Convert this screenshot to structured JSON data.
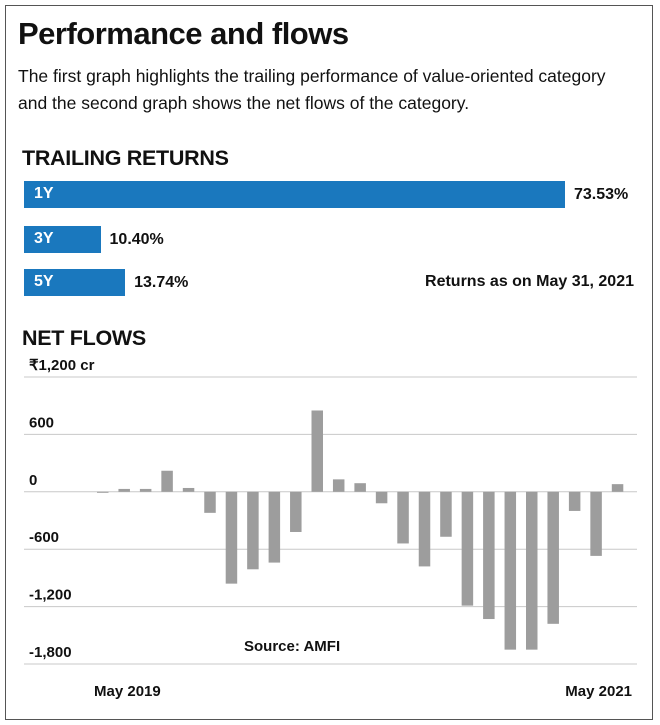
{
  "title": "Performance and flows",
  "subtitle": "The first graph highlights the trailing performance of value-oriented category and the second graph shows the net flows of the category.",
  "trailing_returns": {
    "heading": "TRAILING RETURNS",
    "note": "Returns as on May 31, 2021",
    "bar_color": "#1a78be",
    "items": [
      {
        "label": "1Y",
        "value": 73.53,
        "display": "73.53%"
      },
      {
        "label": "3Y",
        "value": 10.4,
        "display": "10.40%"
      },
      {
        "label": "5Y",
        "value": 13.74,
        "display": "13.74%"
      }
    ]
  },
  "net_flows": {
    "heading": "NET FLOWS",
    "source": "Source: AMFI",
    "bar_color": "#9d9d9d"
  },
  "chart_data": [
    {
      "type": "bar",
      "orientation": "horizontal",
      "title": "TRAILING RETURNS",
      "categories": [
        "1Y",
        "3Y",
        "5Y"
      ],
      "values": [
        73.53,
        10.4,
        13.74
      ],
      "unit": "%"
    },
    {
      "type": "bar",
      "title": "NET FLOWS",
      "ylabel": "₹1,200 cr",
      "ylim": [
        -1800,
        1200
      ],
      "yticks": [
        "₹1,200 cr",
        "600",
        "0",
        "-600",
        "-1,200",
        "-1,800"
      ],
      "yticks_values": [
        1200,
        600,
        0,
        -600,
        -1200,
        -1800
      ],
      "grid": true,
      "x_tick_labels": [
        "May 2019",
        "May 2021"
      ],
      "x_start": "May 2019",
      "x_end": "May 2021",
      "values": [
        -10,
        30,
        30,
        220,
        40,
        -220,
        -960,
        -810,
        -740,
        -420,
        850,
        130,
        90,
        -120,
        -540,
        -780,
        -470,
        -1190,
        -1330,
        -1650,
        -1650,
        -1380,
        -200,
        -670,
        80
      ]
    }
  ]
}
